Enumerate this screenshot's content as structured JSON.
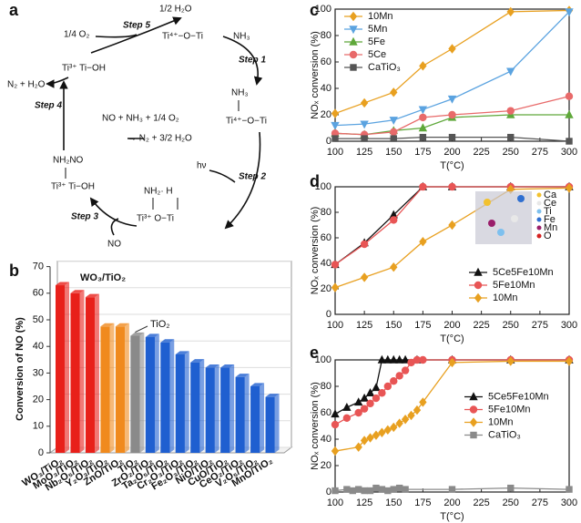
{
  "panel_labels": [
    "a",
    "b",
    "c",
    "d",
    "e"
  ],
  "diagram": {
    "labels": [
      "1/4 O₂",
      "Step 5",
      "1/2 H₂O",
      "Ti⁴⁺−O−Ti",
      "NH₃",
      "Step 1",
      "Ti³⁺   Ti−OH",
      "N₂ + H₂O",
      "Step 4",
      "NO + NH₃ + 1/4 O₂",
      "→ N₂ + 3/2 H₂O",
      "NH₃",
      "Ti⁴⁺−O−Ti",
      "hν",
      "Step 2",
      "NH₂NO",
      "Ti³⁺   Ti−OH",
      "NH₂·   H",
      "Ti³⁺     O−Ti",
      "Step 3",
      "NO"
    ]
  },
  "chart_data": [
    {
      "type": "bar3d",
      "ylabel": "Conversion of NO (%)",
      "categories": [
        "WO₃/TiO₂",
        "MoO₃/TiO₂",
        "Nb₂O₅/TiO₂",
        "Y₂O₃/TiO₂",
        "ZnO/TiO₂",
        "TiO₂",
        "ZrO₂/TiO₂",
        "Ta₂O₅/TiO₂",
        "Cr₂O₃/TiO₂",
        "Fe₂O₃/TiO₂",
        "NiO/TiO₂",
        "CuO/TiO₂",
        "CeO₂/TiO₂",
        "V₂O₅/TiO₂",
        "MnO/TiO₂"
      ],
      "values": [
        63,
        60,
        58.5,
        47.5,
        47.5,
        44,
        43.5,
        41.5,
        37,
        34,
        32,
        32,
        28.5,
        25,
        21
      ],
      "colors": [
        "#e8201a",
        "#e8201a",
        "#e8201a",
        "#f08a1e",
        "#f08a1e",
        "#8a8a8a",
        "#1f5fd0",
        "#1f5fd0",
        "#1f5fd0",
        "#1f5fd0",
        "#1f5fd0",
        "#1f5fd0",
        "#1f5fd0",
        "#1f5fd0",
        "#1f5fd0"
      ],
      "ylim": [
        0,
        70
      ],
      "yticks": [
        0,
        10,
        20,
        30,
        40,
        50,
        60,
        70
      ],
      "annotations": [
        "WO₃/TiO₂",
        "TiO₂"
      ]
    },
    {
      "type": "line",
      "xlabel": "T(°C)",
      "ylabel": "NOₓ conversion (%)",
      "legend": "upper left",
      "x": [
        100,
        125,
        150,
        175,
        200,
        250,
        300
      ],
      "series": [
        {
          "name": "10Mn",
          "color": "#e8a020",
          "marker": "diamond",
          "values": [
            21,
            29,
            37,
            57,
            70,
            98,
            99
          ]
        },
        {
          "name": "5Mn",
          "color": "#5ba3e0",
          "marker": "triangle-down",
          "values": [
            12,
            13,
            16,
            24,
            32,
            53,
            98
          ]
        },
        {
          "name": "5Fe",
          "color": "#5fa83a",
          "marker": "triangle",
          "values": [
            6,
            5,
            8,
            10,
            18,
            20,
            20
          ]
        },
        {
          "name": "5Ce",
          "color": "#e86a6a",
          "marker": "circle",
          "values": [
            6,
            5,
            7,
            18,
            20,
            23,
            34
          ]
        },
        {
          "name": "CaTiO₃",
          "color": "#555555",
          "marker": "square",
          "values": [
            2,
            2,
            2,
            3,
            3,
            3,
            0
          ]
        }
      ],
      "xlim": [
        100,
        300
      ],
      "xticks": [
        100,
        125,
        150,
        175,
        200,
        225,
        250,
        275,
        300
      ],
      "ylim": [
        0,
        100
      ],
      "yticks": [
        0,
        20,
        40,
        60,
        80,
        100
      ]
    },
    {
      "type": "line",
      "xlabel": "T(°C)",
      "ylabel": "NOₓ conversion (%)",
      "legend": "lower right",
      "x": [
        100,
        125,
        150,
        175,
        200,
        250,
        300
      ],
      "series": [
        {
          "name": "5Ce5Fe10Mn",
          "color": "#111111",
          "marker": "triangle",
          "values": [
            39,
            56,
            78,
            100,
            100,
            100,
            100
          ]
        },
        {
          "name": "5Fe10Mn",
          "color": "#e85555",
          "marker": "circle",
          "values": [
            39,
            55,
            74,
            100,
            100,
            100,
            100
          ]
        },
        {
          "name": "10Mn",
          "color": "#e8a020",
          "marker": "diamond",
          "values": [
            21,
            29,
            37,
            57,
            70,
            98,
            99
          ]
        }
      ],
      "xlim": [
        100,
        300
      ],
      "xticks": [
        100,
        125,
        150,
        175,
        200,
        225,
        250,
        275,
        300
      ],
      "ylim": [
        0,
        100
      ],
      "yticks": [
        0,
        20,
        40,
        60,
        80,
        100
      ],
      "inset_labels": [
        "Ca",
        "Ce",
        "Ti",
        "Fe",
        "Mn",
        "O"
      ]
    },
    {
      "type": "line",
      "xlabel": "T(°C)",
      "ylabel": "NOₓ conversion (%)",
      "legend": "center right",
      "series": [
        {
          "name": "5Ce5Fe10Mn",
          "color": "#111111",
          "marker": "triangle",
          "x": [
            100,
            110,
            120,
            125,
            130,
            135,
            140,
            145,
            150,
            155,
            160,
            170,
            200,
            250,
            300
          ],
          "values": [
            59,
            64,
            68,
            71,
            75,
            79,
            100,
            100,
            100,
            100,
            100,
            100,
            100,
            100,
            100
          ]
        },
        {
          "name": "5Fe10Mn",
          "color": "#e85555",
          "marker": "circle",
          "x": [
            100,
            110,
            120,
            125,
            130,
            135,
            140,
            145,
            150,
            155,
            160,
            165,
            170,
            175,
            200,
            250,
            300
          ],
          "values": [
            51,
            56,
            60,
            63,
            67,
            71,
            75,
            80,
            84,
            88,
            92,
            98,
            100,
            100,
            100,
            100,
            100
          ]
        },
        {
          "name": "10Mn",
          "color": "#e8a020",
          "marker": "diamond",
          "x": [
            100,
            120,
            125,
            130,
            135,
            140,
            145,
            150,
            155,
            160,
            165,
            170,
            175,
            200,
            250,
            300
          ],
          "values": [
            31,
            34,
            39,
            41,
            43,
            45,
            47,
            49,
            52,
            55,
            58,
            62,
            68,
            98,
            99,
            99
          ]
        },
        {
          "name": "CaTiO₃",
          "color": "#8a8a8a",
          "marker": "square",
          "x": [
            100,
            110,
            115,
            120,
            125,
            130,
            135,
            140,
            145,
            150,
            155,
            160,
            200,
            250,
            300
          ],
          "values": [
            1,
            2,
            1,
            2,
            1,
            1,
            3,
            2,
            1,
            2,
            3,
            2,
            2,
            3,
            2
          ]
        }
      ],
      "xlim": [
        100,
        300
      ],
      "xticks": [
        100,
        125,
        150,
        175,
        200,
        225,
        250,
        275,
        300
      ],
      "ylim": [
        0,
        100
      ],
      "yticks": [
        0,
        20,
        40,
        60,
        80,
        100
      ]
    }
  ]
}
